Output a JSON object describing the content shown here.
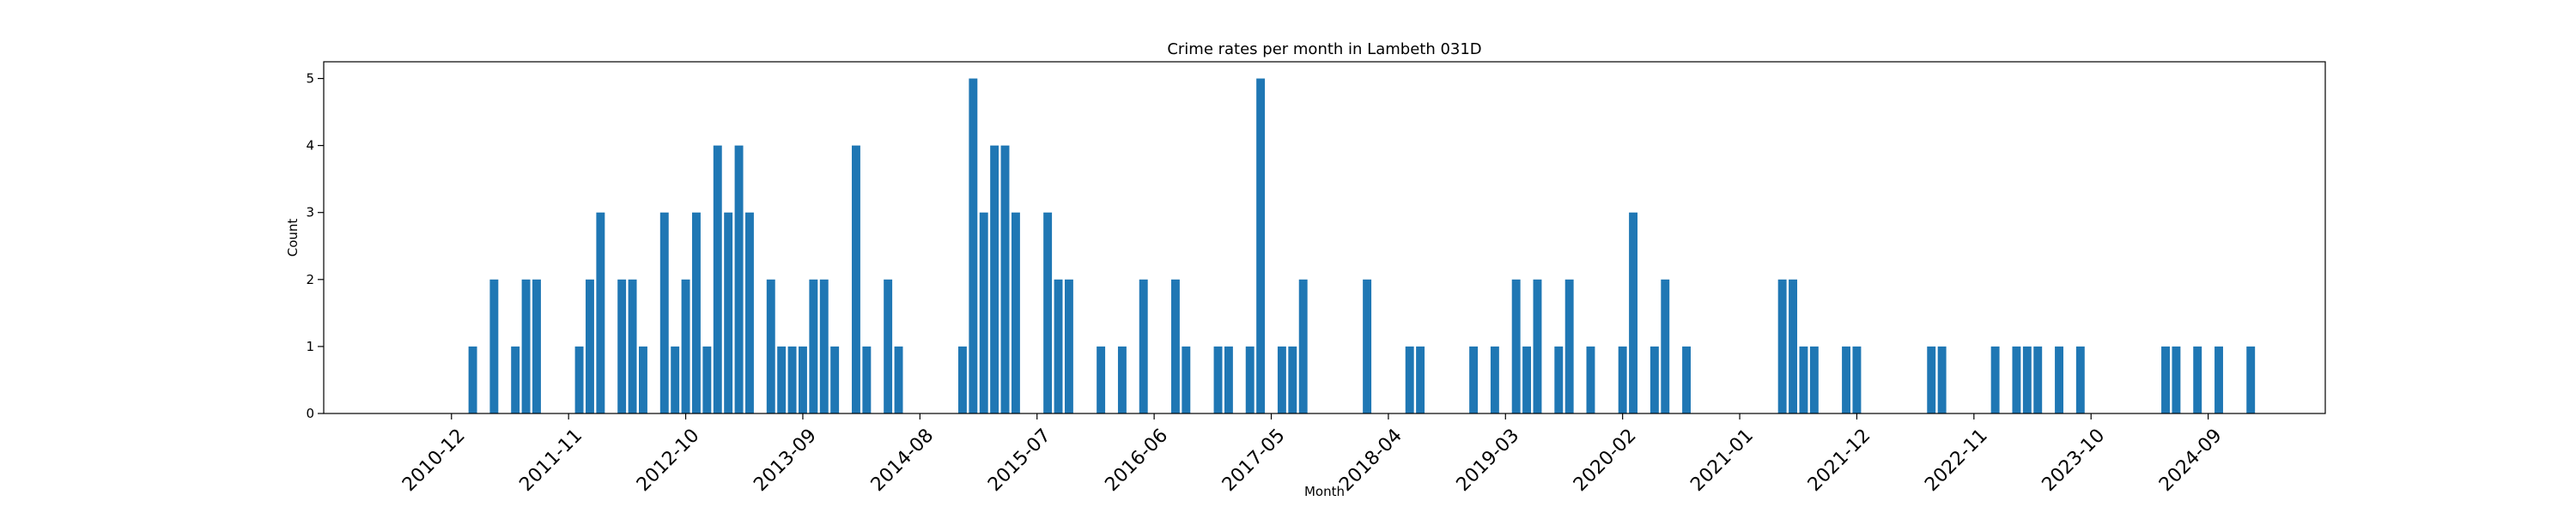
{
  "chart_data": {
    "type": "bar",
    "title": "Crime rates per month in Lambeth 031D",
    "xlabel": "Month",
    "ylabel": "Count",
    "ylim": [
      0,
      5.25
    ],
    "y_ticks": [
      0,
      1,
      2,
      3,
      4,
      5
    ],
    "x_range": [
      "2009-12",
      "2025-08"
    ],
    "x_tick_labels": [
      "2010-12",
      "2011-11",
      "2012-10",
      "2013-09",
      "2014-08",
      "2015-07",
      "2016-06",
      "2017-05",
      "2018-04",
      "2019-03",
      "2020-02",
      "2021-01",
      "2021-12",
      "2022-11",
      "2023-10",
      "2024-09"
    ],
    "bar_color": "#1f77b4",
    "grid": false,
    "categories": [
      "2011-02",
      "2011-04",
      "2011-06",
      "2011-07",
      "2011-08",
      "2011-12",
      "2012-01",
      "2012-02",
      "2012-04",
      "2012-05",
      "2012-06",
      "2012-08",
      "2012-09",
      "2012-10",
      "2012-11",
      "2012-12",
      "2013-01",
      "2013-02",
      "2013-03",
      "2013-04",
      "2013-06",
      "2013-07",
      "2013-08",
      "2013-09",
      "2013-10",
      "2013-11",
      "2013-12",
      "2014-02",
      "2014-03",
      "2014-05",
      "2014-06",
      "2014-12",
      "2015-01",
      "2015-02",
      "2015-03",
      "2015-04",
      "2015-05",
      "2015-08",
      "2015-09",
      "2015-10",
      "2016-01",
      "2016-03",
      "2016-05",
      "2016-08",
      "2016-09",
      "2016-12",
      "2017-01",
      "2017-03",
      "2017-04",
      "2017-06",
      "2017-07",
      "2017-08",
      "2018-02",
      "2018-06",
      "2018-07",
      "2018-12",
      "2019-02",
      "2019-04",
      "2019-05",
      "2019-06",
      "2019-08",
      "2019-09",
      "2019-11",
      "2020-02",
      "2020-03",
      "2020-05",
      "2020-06",
      "2020-08",
      "2021-05",
      "2021-06",
      "2021-07",
      "2021-08",
      "2021-11",
      "2021-12",
      "2022-07",
      "2022-08",
      "2023-01",
      "2023-03",
      "2023-04",
      "2023-05",
      "2023-07",
      "2023-09",
      "2024-05",
      "2024-06",
      "2024-08",
      "2024-10",
      "2025-01"
    ],
    "values": [
      1,
      2,
      1,
      2,
      2,
      1,
      2,
      3,
      2,
      2,
      1,
      3,
      1,
      2,
      3,
      1,
      4,
      3,
      4,
      3,
      2,
      1,
      1,
      1,
      2,
      2,
      1,
      4,
      1,
      2,
      1,
      1,
      5,
      3,
      4,
      4,
      3,
      3,
      2,
      2,
      1,
      1,
      2,
      2,
      1,
      1,
      1,
      1,
      5,
      1,
      1,
      2,
      2,
      1,
      1,
      1,
      1,
      2,
      1,
      2,
      1,
      2,
      1,
      1,
      3,
      1,
      2,
      1,
      2,
      2,
      1,
      1,
      1,
      1,
      1,
      1,
      1,
      1,
      1,
      1,
      1,
      1,
      1,
      1,
      1,
      1,
      1
    ]
  }
}
